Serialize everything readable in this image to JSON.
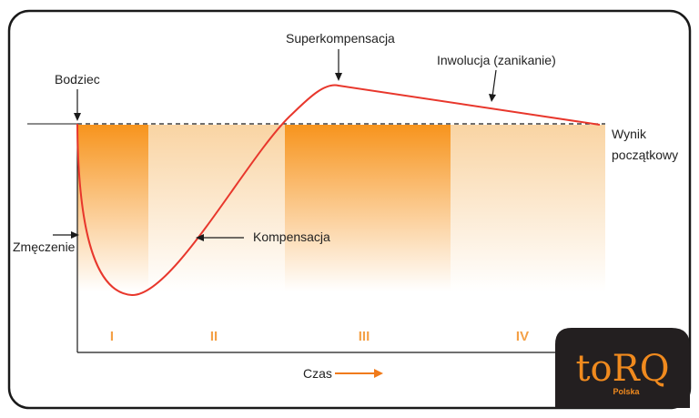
{
  "labels": {
    "stimulus": "Bodziec",
    "supercompensation": "Superkompensacja",
    "involution": "Inwolucja (zanikanie)",
    "baseline_line1": "Wynik",
    "baseline_line2": "początkowy",
    "fatigue": "Zmęczenie",
    "compensation": "Kompensacja",
    "time": "Czas"
  },
  "phases": [
    "I",
    "II",
    "III",
    "IV"
  ],
  "logo": {
    "word": "toRQ",
    "sub": "Polska"
  },
  "colors": {
    "curve": "#e8372c",
    "phase_strong": "#f7941d",
    "phase_light": "#f9d4a3",
    "roman": "#f4a046",
    "logo_bg": "#231f20",
    "logo_fg": "#f08a1e"
  }
}
